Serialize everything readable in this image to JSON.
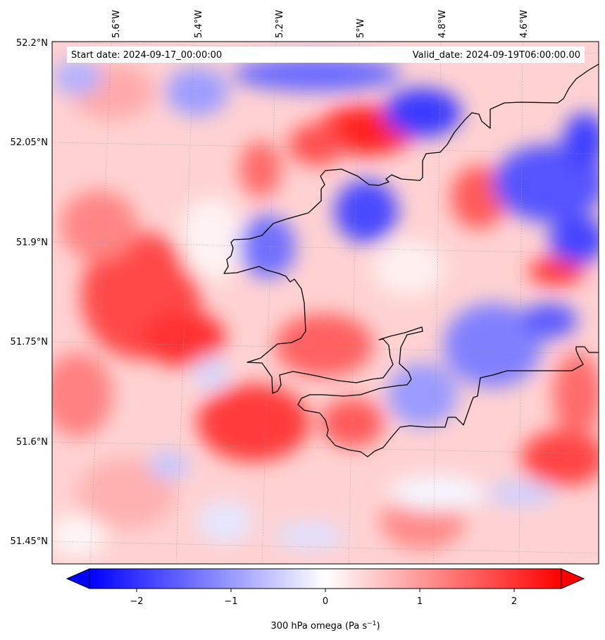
{
  "header": {
    "start_date": "Start date: 2024-09-17_00:00:00",
    "valid_date": "Valid_date: 2024-09-19T06:00:00.00"
  },
  "map": {
    "projection": "lambert conformal",
    "lon_range": [
      -5.67,
      -4.45
    ],
    "lat_range": [
      51.42,
      52.2
    ],
    "gridlines": true,
    "coastline_color": "#000000"
  },
  "lon_labels": [
    "5.6°W",
    "5.4°W",
    "5.2°W",
    "5°W",
    "4.8°W",
    "4.6°W"
  ],
  "lat_labels": [
    "52.2°N",
    "52.05°N",
    "51.9°N",
    "51.75°N",
    "51.6°N",
    "51.45°N"
  ],
  "colorbar": {
    "label": "300 hPa omega (Pa s",
    "label_superscript": "−1",
    "label_close": ")",
    "ticks": [
      "−2",
      "−1",
      "0",
      "1",
      "2"
    ],
    "range": [
      -2.5,
      2.5
    ],
    "colormap": "bwr",
    "min_color": "#0000ff",
    "mid_color": "#ffffff",
    "max_color": "#ff0000",
    "extend": "both"
  }
}
